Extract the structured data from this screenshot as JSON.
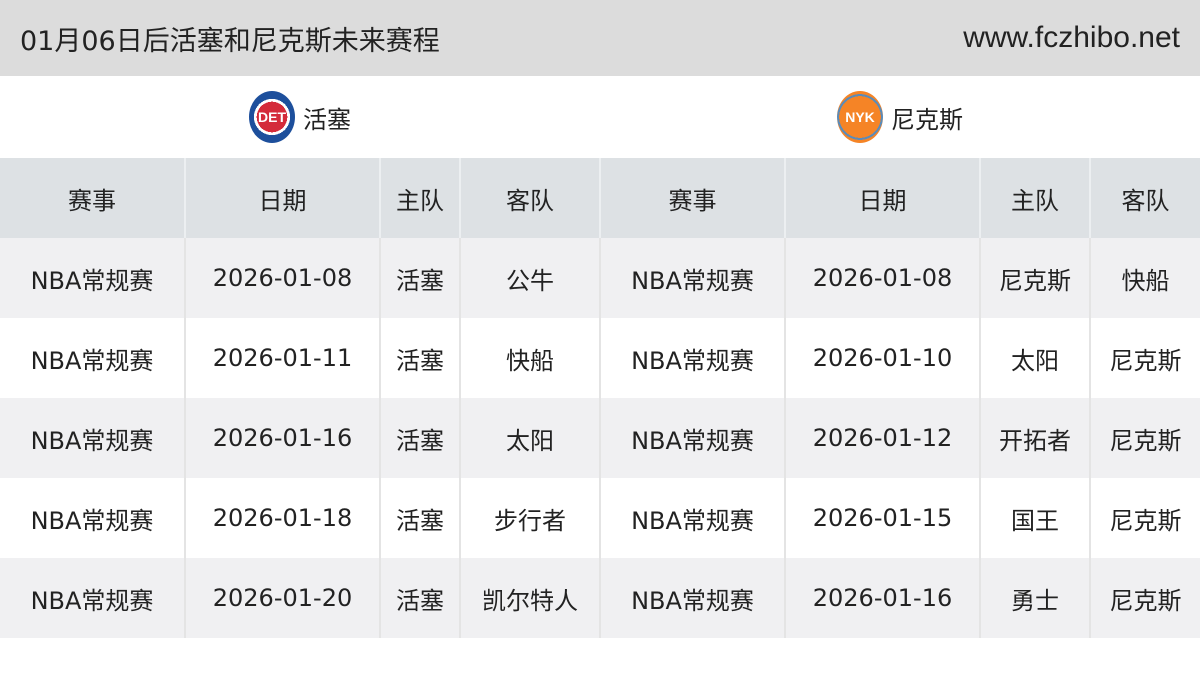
{
  "header": {
    "title": "01月06日后活塞和尼克斯未来赛程",
    "site": "www.fczhibo.net"
  },
  "teams": [
    {
      "name": "活塞",
      "logo_text": "DET",
      "logo_color": "#1d4f9c"
    },
    {
      "name": "尼克斯",
      "logo_text": "NYK",
      "logo_color": "#f58426"
    }
  ],
  "columns": [
    "赛事",
    "日期",
    "主队",
    "客队",
    "赛事",
    "日期",
    "主队",
    "客队"
  ],
  "rows": [
    [
      "NBA常规赛",
      "2026-01-08",
      "活塞",
      "公牛",
      "NBA常规赛",
      "2026-01-08",
      "尼克斯",
      "快船"
    ],
    [
      "NBA常规赛",
      "2026-01-11",
      "活塞",
      "快船",
      "NBA常规赛",
      "2026-01-10",
      "太阳",
      "尼克斯"
    ],
    [
      "NBA常规赛",
      "2026-01-16",
      "活塞",
      "太阳",
      "NBA常规赛",
      "2026-01-12",
      "开拓者",
      "尼克斯"
    ],
    [
      "NBA常规赛",
      "2026-01-18",
      "活塞",
      "步行者",
      "NBA常规赛",
      "2026-01-15",
      "国王",
      "尼克斯"
    ],
    [
      "NBA常规赛",
      "2026-01-20",
      "活塞",
      "凯尔特人",
      "NBA常规赛",
      "2026-01-16",
      "勇士",
      "尼克斯"
    ]
  ]
}
